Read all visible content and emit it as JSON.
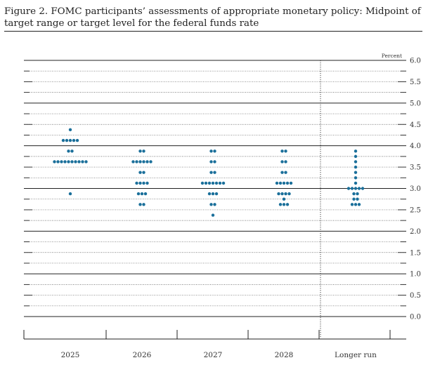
{
  "title": "Figure 2. FOMC participants’ assessments of appropriate monetary policy: Midpoint of target range or target level for the federal funds rate",
  "chart_data": {
    "type": "scatter",
    "title": "Figure 2. FOMC participants’ assessments of appropriate monetary policy: Midpoint of target range or target level for the federal funds rate",
    "unit_label": "Percent",
    "categories": [
      "2025",
      "2026",
      "2027",
      "2028",
      "Longer run"
    ],
    "ylim": [
      0,
      6
    ],
    "y_ticks": [
      "0.0",
      "0.5",
      "1.0",
      "1.5",
      "2.0",
      "2.5",
      "3.0",
      "3.5",
      "4.0",
      "4.5",
      "5.0",
      "5.5",
      "6.0"
    ],
    "grid": true,
    "dot_color": "#1a6f9a",
    "dots": {
      "2025": [
        {
          "value": 4.375,
          "count": 1
        },
        {
          "value": 4.125,
          "count": 5
        },
        {
          "value": 3.875,
          "count": 2
        },
        {
          "value": 3.625,
          "count": 10
        },
        {
          "value": 2.875,
          "count": 1
        }
      ],
      "2026": [
        {
          "value": 3.875,
          "count": 2
        },
        {
          "value": 3.625,
          "count": 6
        },
        {
          "value": 3.375,
          "count": 2
        },
        {
          "value": 3.125,
          "count": 4
        },
        {
          "value": 2.875,
          "count": 3
        },
        {
          "value": 2.625,
          "count": 2
        }
      ],
      "2027": [
        {
          "value": 3.875,
          "count": 2
        },
        {
          "value": 3.625,
          "count": 2
        },
        {
          "value": 3.375,
          "count": 2
        },
        {
          "value": 3.125,
          "count": 7
        },
        {
          "value": 2.875,
          "count": 3
        },
        {
          "value": 2.625,
          "count": 2
        },
        {
          "value": 2.375,
          "count": 1
        }
      ],
      "2028": [
        {
          "value": 3.875,
          "count": 2
        },
        {
          "value": 3.625,
          "count": 2
        },
        {
          "value": 3.375,
          "count": 2
        },
        {
          "value": 3.125,
          "count": 5
        },
        {
          "value": 2.875,
          "count": 4
        },
        {
          "value": 2.75,
          "count": 1
        },
        {
          "value": 2.625,
          "count": 3
        }
      ],
      "Longer run": [
        {
          "value": 3.875,
          "count": 1
        },
        {
          "value": 3.75,
          "count": 1
        },
        {
          "value": 3.625,
          "count": 1
        },
        {
          "value": 3.5,
          "count": 1
        },
        {
          "value": 3.375,
          "count": 1
        },
        {
          "value": 3.25,
          "count": 1
        },
        {
          "value": 3.125,
          "count": 1
        },
        {
          "value": 3.0,
          "count": 5
        },
        {
          "value": 2.875,
          "count": 2
        },
        {
          "value": 2.75,
          "count": 2
        },
        {
          "value": 2.625,
          "count": 3
        }
      ]
    }
  }
}
